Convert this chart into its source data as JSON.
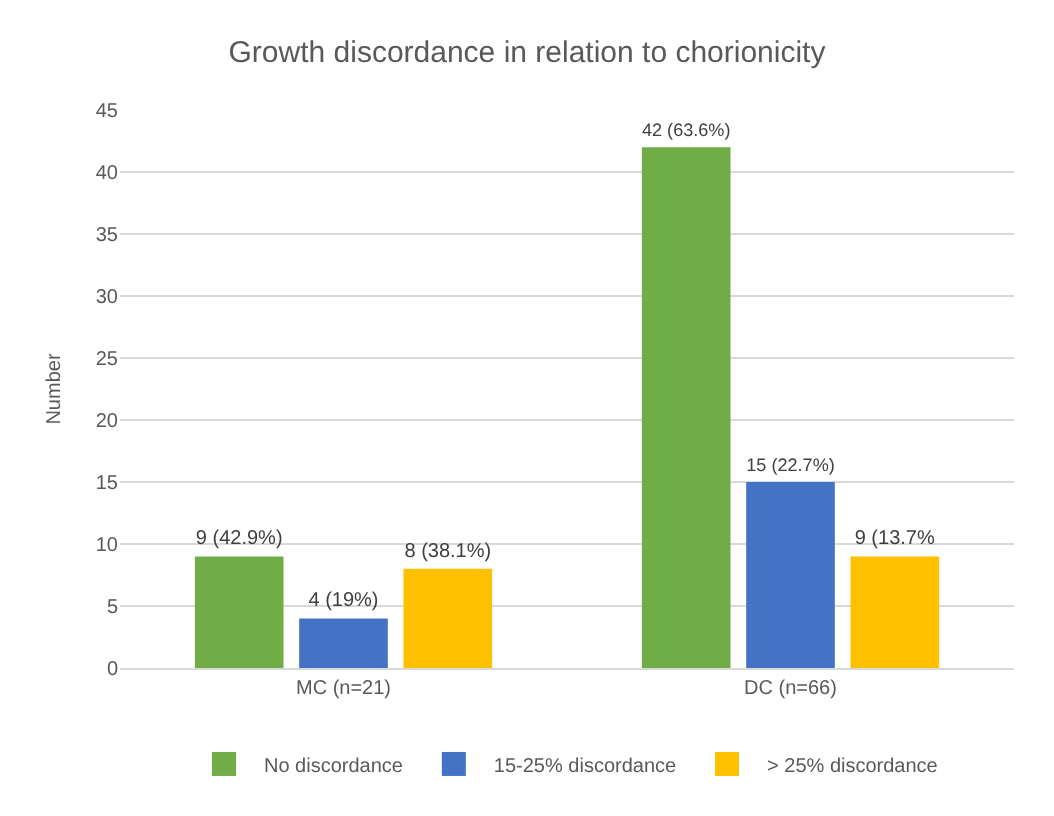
{
  "chart_data": {
    "type": "bar",
    "title": "Growth discordance in relation to chorionicity",
    "ylabel": "Number",
    "categories": [
      "MC (n=21)",
      "DC (n=66)"
    ],
    "series": [
      {
        "name": "No discordance",
        "color": "#70ad47",
        "values": [
          9,
          42
        ],
        "value_labels": [
          "9 (42.9%)",
          "42 (63.6%)"
        ]
      },
      {
        "name": "15-25% discordance",
        "color": "#4472c4",
        "values": [
          4,
          15
        ],
        "value_labels": [
          "4 (19%)",
          "15 (22.7%)"
        ]
      },
      {
        "name": "> 25% discordance",
        "color": "#ffc000",
        "values": [
          8,
          9
        ],
        "value_labels": [
          "8 (38.1%)",
          "9 (13.7%"
        ]
      }
    ],
    "ylim": [
      0,
      45
    ],
    "yticks": [
      0,
      5,
      10,
      15,
      20,
      25,
      30,
      35,
      40,
      45
    ],
    "grid": "y",
    "legend": "bottom"
  }
}
